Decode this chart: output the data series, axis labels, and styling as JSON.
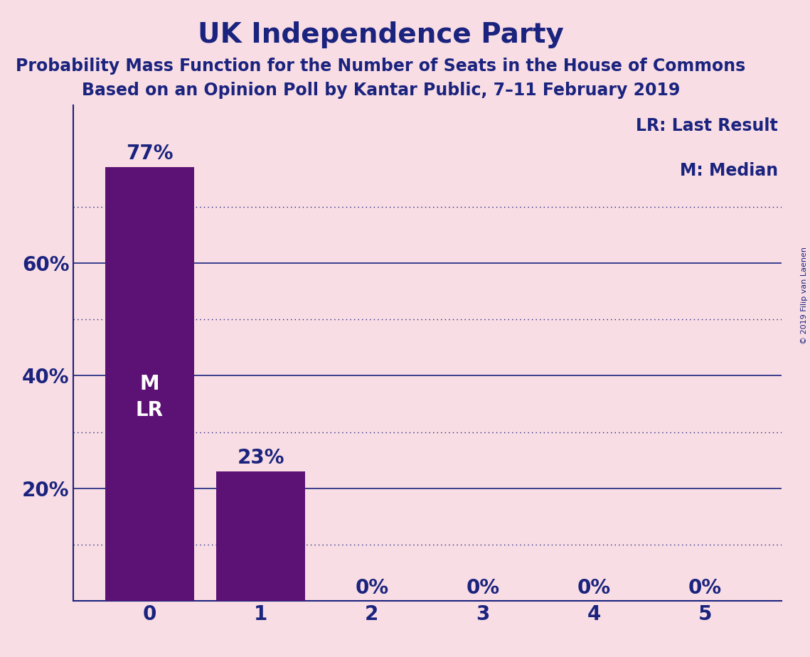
{
  "title": "UK Independence Party",
  "subtitle1": "Probability Mass Function for the Number of Seats in the House of Commons",
  "subtitle2": "Based on an Opinion Poll by Kantar Public, 7–11 February 2019",
  "copyright": "© 2019 Filip van Laenen",
  "legend_lr": "LR: Last Result",
  "legend_m": "M: Median",
  "categories": [
    0,
    1,
    2,
    3,
    4,
    5
  ],
  "values": [
    0.77,
    0.23,
    0.0,
    0.0,
    0.0,
    0.0
  ],
  "bar_labels": [
    "77%",
    "23%",
    "0%",
    "0%",
    "0%",
    "0%"
  ],
  "bar_color": "#5c1275",
  "background_color": "#f9dde4",
  "text_color": "#1a237e",
  "ytick_major_values": [
    0.2,
    0.4,
    0.6
  ],
  "ytick_major_labels": [
    "20%",
    "40%",
    "60%"
  ],
  "ytick_minor_values": [
    0.1,
    0.3,
    0.5,
    0.7
  ],
  "ylim": [
    0,
    0.88
  ],
  "grid_color": "#1a237e",
  "bar_annotation": "M\nLR",
  "title_fontsize": 28,
  "subtitle_fontsize": 17,
  "tick_fontsize": 20,
  "bar_label_fontsize": 20,
  "legend_fontsize": 17,
  "annotation_fontsize": 20,
  "copyright_fontsize": 8
}
